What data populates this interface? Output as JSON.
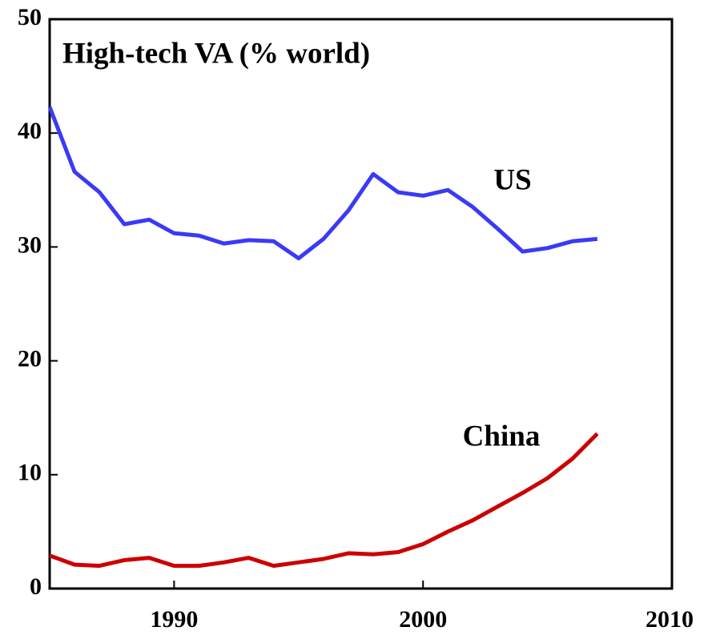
{
  "chart_data": {
    "type": "line",
    "title": "High-tech VA (% world)",
    "x": [
      1985,
      1986,
      1987,
      1988,
      1989,
      1990,
      1991,
      1992,
      1993,
      1994,
      1995,
      1996,
      1997,
      1998,
      1999,
      2000,
      2001,
      2002,
      2003,
      2004,
      2005,
      2006,
      2007
    ],
    "series": [
      {
        "name": "US",
        "color": "#3a3af5",
        "values": [
          42.3,
          36.6,
          34.8,
          32.0,
          32.4,
          31.2,
          31.0,
          30.3,
          30.6,
          30.5,
          29.0,
          30.7,
          33.2,
          36.4,
          34.8,
          34.5,
          35.0,
          33.5,
          31.6,
          29.6,
          29.9,
          30.5,
          30.7
        ]
      },
      {
        "name": "China",
        "color": "#cc0000",
        "values": [
          2.9,
          2.1,
          2.0,
          2.5,
          2.7,
          2.0,
          2.0,
          2.3,
          2.7,
          2.0,
          2.3,
          2.6,
          3.1,
          3.0,
          3.2,
          3.9,
          5.0,
          6.0,
          7.2,
          8.4,
          9.7,
          11.4,
          13.6
        ]
      }
    ],
    "xlim": [
      1985,
      2010
    ],
    "xticks": [
      1990,
      2000,
      2010
    ],
    "ylim": [
      0,
      50
    ],
    "yticks": [
      0,
      10,
      20,
      30,
      40,
      50
    ],
    "grid": false
  }
}
